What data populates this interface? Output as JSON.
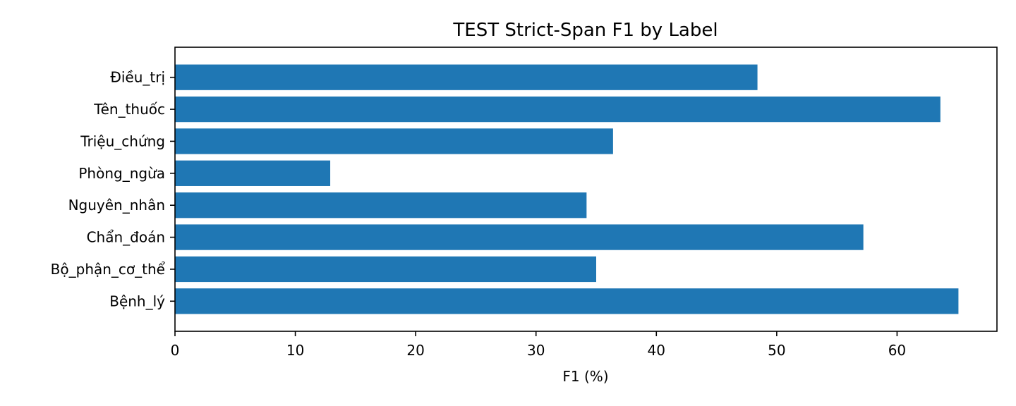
{
  "chart_data": {
    "type": "bar",
    "orientation": "horizontal",
    "title": "TEST Strict-Span F1 by Label",
    "xlabel": "F1 (%)",
    "ylabel": "",
    "categories": [
      "Bệnh_lý",
      "Bộ_phận_cơ_thể",
      "Chẩn_đoán",
      "Nguyên_nhân",
      "Phòng_ngừa",
      "Triệu_chứng",
      "Tên_thuốc",
      "Điều_trị"
    ],
    "values": [
      65.1,
      35.0,
      57.2,
      34.2,
      12.9,
      36.4,
      63.6,
      48.4
    ],
    "xlim": [
      0,
      68.3
    ],
    "xticks": [
      "0",
      "10",
      "20",
      "30",
      "40",
      "50",
      "60"
    ],
    "grid": false,
    "bar_color": "#1f77b4"
  }
}
